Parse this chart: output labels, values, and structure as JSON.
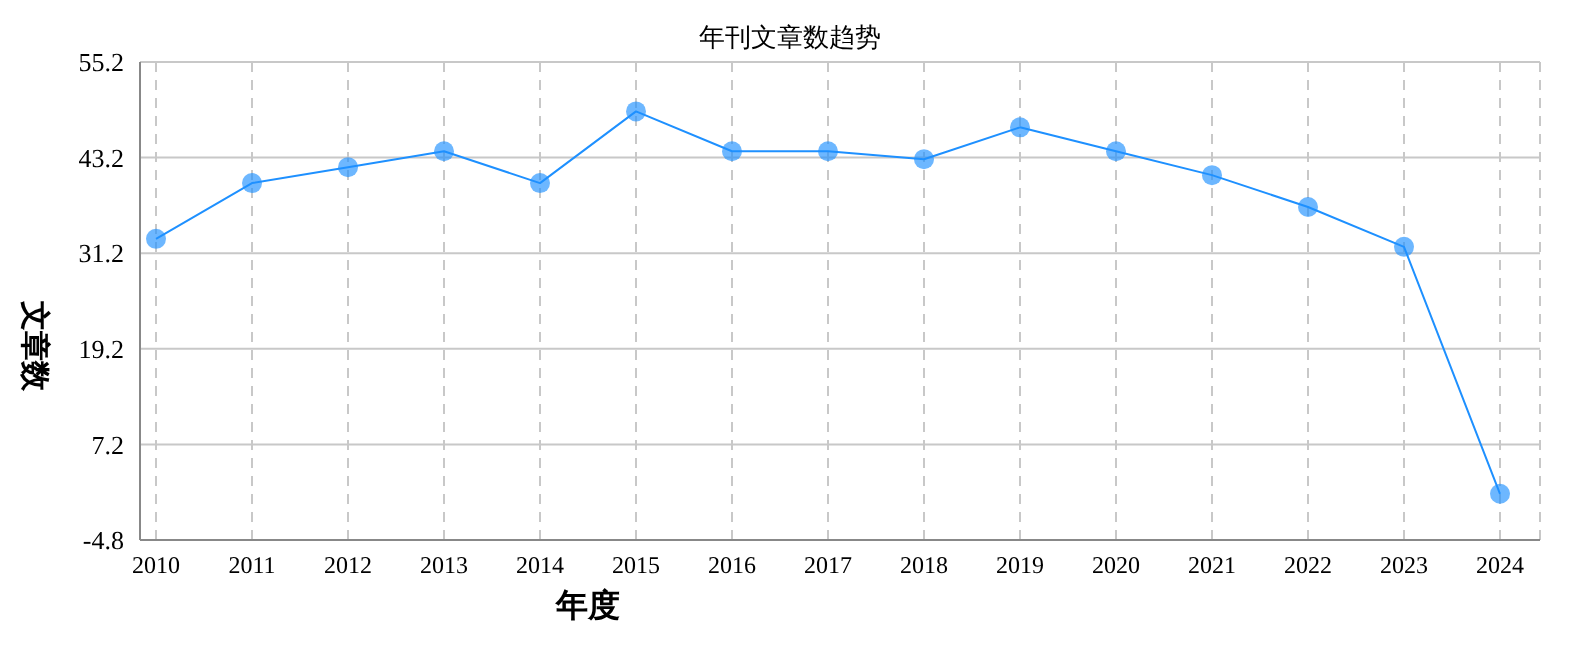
{
  "chart_data": {
    "type": "line",
    "title": "年刊文章数趋势",
    "xlabel": "年度",
    "ylabel": "文章数",
    "categories": [
      "2010",
      "2011",
      "2012",
      "2013",
      "2014",
      "2015",
      "2016",
      "2017",
      "2018",
      "2019",
      "2020",
      "2021",
      "2022",
      "2023",
      "2024"
    ],
    "series": [
      {
        "color": "#1e90ff",
        "values": [
          33,
          40,
          42,
          44,
          40,
          49,
          44,
          44,
          43,
          47,
          44,
          41,
          37,
          32,
          1
        ]
      }
    ],
    "ylim": [
      -4.8,
      55.2
    ],
    "yticks": [
      -4.8,
      7.2,
      19.2,
      31.2,
      43.2,
      55.2
    ],
    "grid": true,
    "marker": "circle",
    "line_style": "solid",
    "legend": false
  }
}
